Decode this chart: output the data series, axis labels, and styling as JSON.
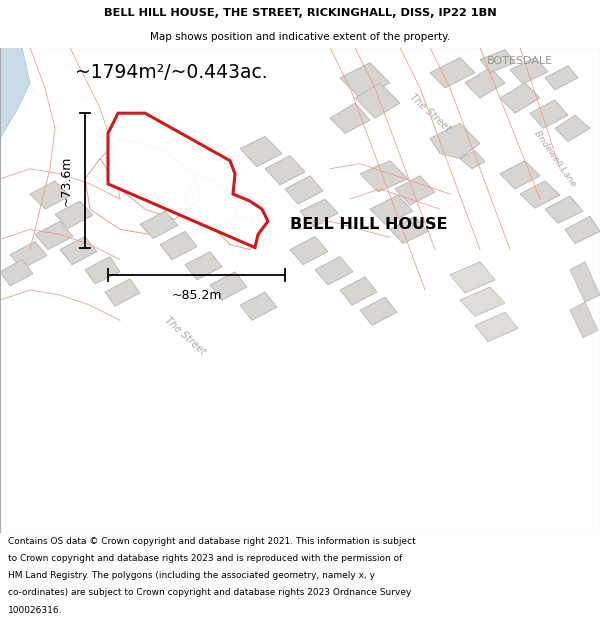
{
  "title": "BELL HILL HOUSE, THE STREET, RICKINGHALL, DISS, IP22 1BN",
  "subtitle": "Map shows position and indicative extent of the property.",
  "property_label": "BELL HILL HOUSE",
  "area_label": "~1794m²/~0.443ac.",
  "width_label": "~85.2m",
  "height_label": "~73.6m",
  "footer": "Contains OS data © Crown copyright and database right 2021. This information is subject to Crown copyright and database rights 2023 and is reproduced with the permission of HM Land Registry. The polygons (including the associated geometry, namely x, y co-ordinates) are subject to Crown copyright and database rights 2023 Ordnance Survey 100026316.",
  "bg_color": "#f5f2f0",
  "building_fill": "#d8d4d0",
  "building_edge": "#b8b4b0",
  "boundary_color": "#e8a090",
  "water_color": "#c8dce8",
  "property_color": "#cc0000",
  "dim_color": "#000000",
  "text_road": "#aaaaaa",
  "text_label": "#888888",
  "botesdale": "BOTESDALE",
  "street1": "The Street",
  "street2": "The Street",
  "bridewell": "Bridewell Lane",
  "figsize": [
    6.0,
    6.25
  ],
  "dpi": 100
}
